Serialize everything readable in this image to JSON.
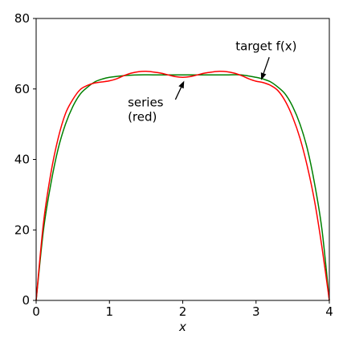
{
  "chart_data": {
    "type": "line",
    "xlabel": "x",
    "ylabel": "",
    "title": "",
    "xlim": [
      0,
      4
    ],
    "ylim": [
      0,
      80
    ],
    "xticks": [
      "0",
      "1",
      "2",
      "3",
      "4"
    ],
    "yticks": [
      "0",
      "20",
      "40",
      "60",
      "80"
    ],
    "grid": false,
    "series": [
      {
        "key": "target",
        "color": "#008000",
        "x": [
          0,
          0.1,
          0.2,
          0.3,
          0.4,
          0.5,
          0.6,
          0.7,
          0.8,
          0.9,
          1.0,
          1.2,
          1.4,
          1.6,
          1.8,
          2.0,
          2.2,
          2.4,
          2.6,
          2.8,
          3.0,
          3.1,
          3.2,
          3.3,
          3.4,
          3.5,
          3.6,
          3.7,
          3.8,
          3.9,
          4.0
        ],
        "y": [
          0,
          20,
          33,
          43,
          50,
          55,
          58.5,
          60.5,
          62,
          62.8,
          63.3,
          63.8,
          64,
          64,
          64,
          64,
          64,
          64,
          64,
          64,
          63.3,
          62.8,
          62,
          60.5,
          58.5,
          55,
          50,
          43,
          33,
          20,
          0
        ]
      },
      {
        "key": "series",
        "color": "#ff0000",
        "x": [
          0,
          0.1,
          0.2,
          0.3,
          0.4,
          0.5,
          0.6,
          0.7,
          0.8,
          0.9,
          1.0,
          1.1,
          1.2,
          1.3,
          1.4,
          1.5,
          1.6,
          1.7,
          1.8,
          1.9,
          2.0,
          2.1,
          2.2,
          2.3,
          2.4,
          2.5,
          2.6,
          2.7,
          2.8,
          2.9,
          3.0,
          3.1,
          3.2,
          3.3,
          3.4,
          3.5,
          3.6,
          3.7,
          3.8,
          3.9,
          4.0
        ],
        "y": [
          0,
          22,
          36,
          46,
          53,
          57,
          59.8,
          61,
          61.7,
          62,
          62.3,
          62.9,
          63.8,
          64.5,
          64.9,
          65,
          64.8,
          64.5,
          64,
          63.5,
          63.3,
          63.5,
          64,
          64.5,
          64.8,
          65,
          64.9,
          64.5,
          63.8,
          62.9,
          62.2,
          61.8,
          61,
          59.5,
          56.5,
          52,
          46,
          38,
          28,
          15,
          0
        ]
      }
    ],
    "annotations": [
      {
        "lines": [
          "target f(x)"
        ],
        "text_x": 2.72,
        "text_y": 71,
        "arrow_tail": [
          3.18,
          69
        ],
        "arrow_head": [
          3.07,
          62.5
        ]
      },
      {
        "lines": [
          "series",
          "(red)"
        ],
        "text_x": 1.25,
        "text_y": 55,
        "arrow_tail": [
          1.9,
          57
        ],
        "arrow_head": [
          2.02,
          62.3
        ]
      }
    ]
  }
}
